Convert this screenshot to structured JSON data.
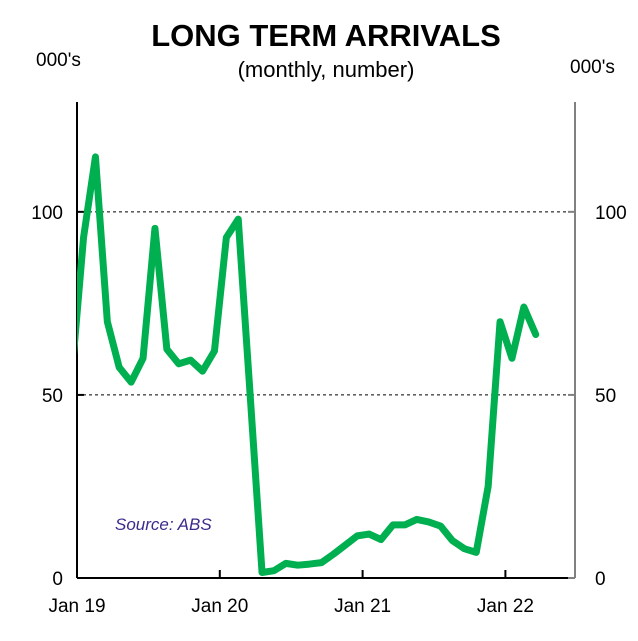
{
  "chart_data": {
    "type": "line",
    "title": "LONG TERM ARRIVALS",
    "subtitle": "(monthly, number)",
    "ylabel_left": "000's",
    "ylabel_right": "000's",
    "annotation": "Source: ABS",
    "ylim": [
      0,
      130
    ],
    "yticks": [
      0,
      50,
      100
    ],
    "ytick_labels": [
      "0",
      "50",
      "100"
    ],
    "gridlines": [
      50,
      100
    ],
    "xtick_labels": [
      "Jan 19",
      "Jan 20",
      "Jan 21",
      "Jan 22"
    ],
    "x_range_months": [
      0,
      42
    ],
    "series": [
      {
        "name": "Long term arrivals",
        "color": "#00b050",
        "x": [
          "Dec 18",
          "Jan 19",
          "Feb 19",
          "Mar 19",
          "Apr 19",
          "May 19",
          "Jun 19",
          "Jul 19",
          "Aug 19",
          "Sep 19",
          "Oct 19",
          "Nov 19",
          "Dec 19",
          "Jan 20",
          "Feb 20",
          "Mar 20",
          "Apr 20",
          "May 20",
          "Jun 20",
          "Jul 20",
          "Aug 20",
          "Sep 20",
          "Oct 20",
          "Nov 20",
          "Dec 20",
          "Jan 21",
          "Feb 21",
          "Mar 21",
          "Apr 21",
          "May 21",
          "Jun 21",
          "Jul 21",
          "Aug 21",
          "Sep 21",
          "Oct 21",
          "Nov 21",
          "Dec 21",
          "Jan 22",
          "Feb 22",
          "Mar 22"
        ],
        "values": [
          55,
          93,
          115,
          70,
          57.5,
          53.5,
          60,
          95.5,
          62.5,
          58.5,
          59.5,
          56.5,
          62,
          93,
          98,
          50,
          1.5,
          2,
          4,
          3.5,
          3.8,
          4.2,
          6.5,
          9,
          11.5,
          12,
          10.5,
          14.5,
          14.5,
          16,
          15.3,
          14.2,
          10.2,
          8,
          7,
          25,
          70,
          60,
          74,
          66.5
        ]
      }
    ]
  }
}
